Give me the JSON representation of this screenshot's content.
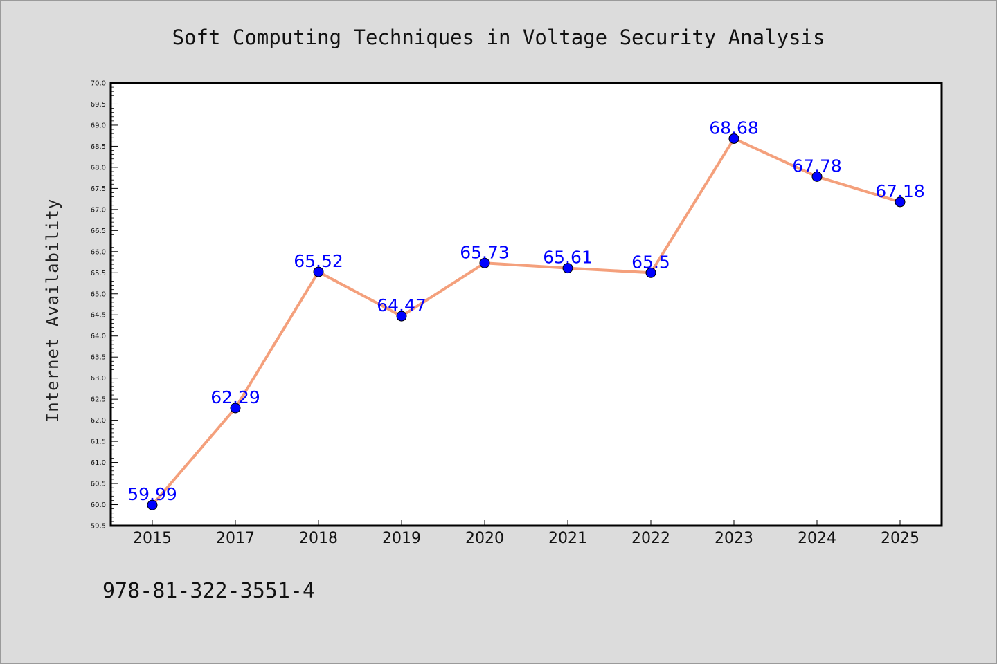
{
  "chart_data": {
    "type": "line",
    "title": "Soft Computing Techniques in Voltage Security Analysis",
    "xlabel": "",
    "ylabel": "Internet Availability",
    "categories": [
      "2015",
      "2017",
      "2018",
      "2019",
      "2020",
      "2021",
      "2022",
      "2023",
      "2024",
      "2025"
    ],
    "series": [
      {
        "values": [
          59.99,
          62.29,
          65.52,
          64.47,
          65.73,
          65.61,
          65.5,
          68.68,
          67.78,
          67.18
        ],
        "data_labels": [
          "59.99",
          "62.29",
          "65.52",
          "64.47",
          "65.73",
          "65.61",
          "65.5",
          "68.68",
          "67.78",
          "67.18"
        ]
      }
    ],
    "ylim": [
      59.5,
      70.0
    ],
    "ytick_step": 0.5,
    "grid": false,
    "legend": "none",
    "colors": {
      "line": "#f4a07c",
      "marker": "#0000ff",
      "label": "#0000ff",
      "plot_bg": "#ffffff",
      "page_bg": "#dcdcdc"
    }
  },
  "footer_text": "978-81-322-3551-4"
}
